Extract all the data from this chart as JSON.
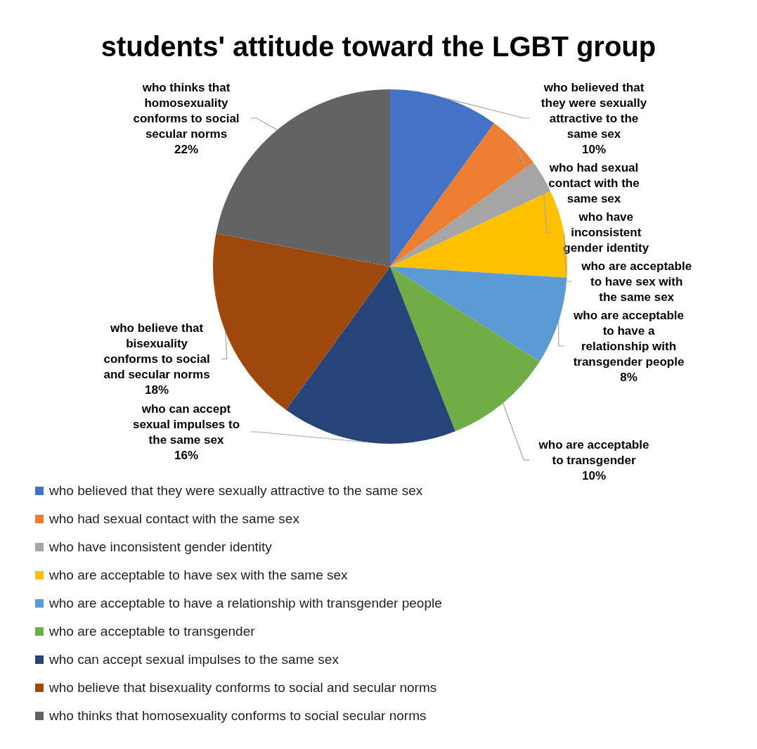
{
  "chart_data": {
    "type": "pie",
    "title": "students' attitude toward the LGBT group",
    "categories": [
      "who believed that they were sexually attractive to the same sex",
      "who had sexual contact with the same sex",
      "who have inconsistent gender identity",
      "who are acceptable to have sex with the same sex",
      "who are acceptable to have a relationship with transgender people",
      "who are acceptable to transgender",
      "who can accept sexual impulses to the same sex",
      "who believe that bisexuality conforms to social and secular norms",
      "who thinks that homosexuality conforms to social secular norms"
    ],
    "values": [
      10,
      5,
      3,
      8,
      8,
      10,
      16,
      18,
      22
    ],
    "value_labels": [
      "10%",
      null,
      null,
      null,
      "8%",
      "10%",
      "16%",
      "18%",
      "22%"
    ],
    "colors": [
      "#4472c4",
      "#ed7d31",
      "#a5a5a5",
      "#ffc000",
      "#5b9bd5",
      "#70ad47",
      "#264478",
      "#9e480e",
      "#636363"
    ],
    "legend": "bottom"
  }
}
